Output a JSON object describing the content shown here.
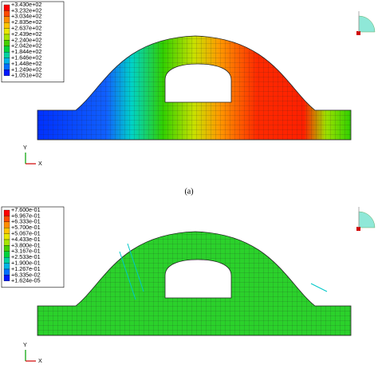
{
  "panels": [
    {
      "legend": {
        "labels": [
          "+3.430e+02",
          "+3.232e+02",
          "+3.034e+02",
          "+2.835e+02",
          "+2.637e+02",
          "+2.439e+02",
          "+2.240e+02",
          "+2.042e+02",
          "+1.844e+02",
          "+1.646e+02",
          "+1.448e+02",
          "+1.249e+02",
          "+1.051e+02"
        ],
        "colors": [
          "#ff0000",
          "#ff4a00",
          "#ff8c00",
          "#ffc400",
          "#e8e800",
          "#a8e600",
          "#46d000",
          "#00d23c",
          "#00d2a0",
          "#00b4e6",
          "#0070ff",
          "#0018ff"
        ]
      },
      "axis_labels": {
        "y": "Y",
        "x": "X"
      }
    },
    {
      "legend": {
        "labels": [
          "+7.600e-01",
          "+6.967e-01",
          "+6.333e-01",
          "+5.700e-01",
          "+5.067e-01",
          "+4.433e-01",
          "+3.800e-01",
          "+3.167e-01",
          "+2.533e-01",
          "+1.900e-01",
          "+1.267e-01",
          "+6.335e-02",
          "+1.624e-05"
        ],
        "colors": [
          "#ff0000",
          "#ff4a00",
          "#ff8c00",
          "#ffc400",
          "#e8e800",
          "#a8e600",
          "#46d000",
          "#00d23c",
          "#00d2a0",
          "#00b4e6",
          "#0070ff",
          "#0018ff"
        ]
      },
      "axis_labels": {
        "y": "Y",
        "x": "X"
      }
    }
  ],
  "caption": "(a)"
}
